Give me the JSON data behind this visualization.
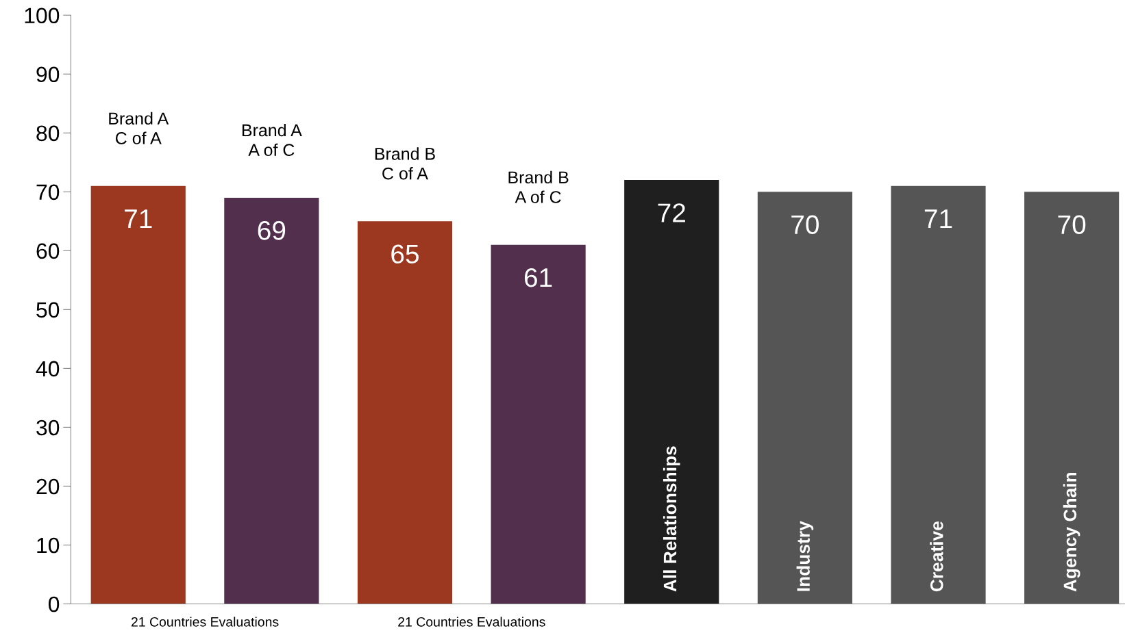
{
  "chart_data": {
    "type": "bar",
    "categories": [
      "Brand A\nC of A",
      "Brand A\nA of C",
      "Brand B\nC of A",
      "Brand B\nA of C",
      "All Relationships",
      "Industry",
      "Creative",
      "Agency Chain"
    ],
    "values": [
      71,
      69,
      65,
      61,
      72,
      70,
      71,
      70
    ],
    "colors": [
      "#9c3720",
      "#52304d",
      "#9c3720",
      "#52304d",
      "#1f1f1f",
      "#555555",
      "#555555",
      "#555555"
    ],
    "ylim": [
      0,
      100
    ],
    "yticks": [
      0,
      10,
      20,
      30,
      40,
      50,
      60,
      70,
      80,
      90,
      100
    ],
    "data_labels": true,
    "grid": false,
    "legend": false,
    "annotations": [
      "21 Countries Evaluations",
      "21 Countries Evaluations"
    ]
  }
}
